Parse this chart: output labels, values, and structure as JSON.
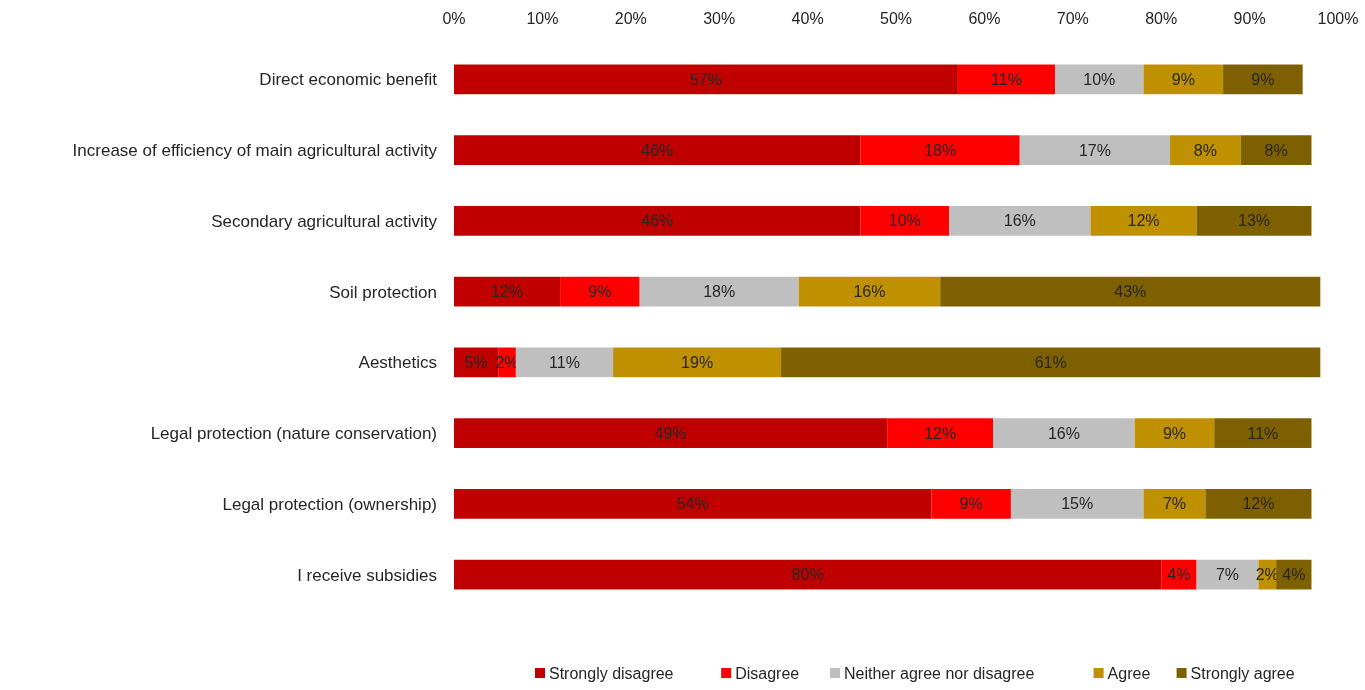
{
  "chart_data": {
    "type": "bar",
    "orientation": "horizontal",
    "stacked": true,
    "legend": "bottom",
    "grid": false,
    "categories": [
      "Direct economic benefit",
      "Increase of efficiency of main agricultural activity",
      "Secondary agricultural activity",
      "Soil protection",
      "Aesthetics",
      "Legal protection (nature conservation)",
      "Legal protection (ownership)",
      "I receive subsidies"
    ],
    "xlim": [
      0,
      100
    ],
    "xticks": [
      {
        "value": 0,
        "label": "0%"
      },
      {
        "value": 10,
        "label": "10%"
      },
      {
        "value": 20,
        "label": "20%"
      },
      {
        "value": 30,
        "label": "30%"
      },
      {
        "value": 40,
        "label": "40%"
      },
      {
        "value": 50,
        "label": "50%"
      },
      {
        "value": 60,
        "label": "60%"
      },
      {
        "value": 70,
        "label": "70%"
      },
      {
        "value": 80,
        "label": "80%"
      },
      {
        "value": 90,
        "label": "90%"
      },
      {
        "value": 100,
        "label": "100%"
      }
    ],
    "series": [
      {
        "name": "Strongly disagree",
        "color": "#c00000",
        "values": [
          57,
          46,
          46,
          12,
          5,
          49,
          54,
          80
        ],
        "value_labels": [
          "57%",
          "46%",
          "46%",
          "12%",
          "5%",
          "49%",
          "54%",
          "80%"
        ]
      },
      {
        "name": "Disagree",
        "color": "#ff0000",
        "values": [
          11,
          18,
          10,
          9,
          2,
          12,
          9,
          4
        ],
        "value_labels": [
          "11%",
          "18%",
          "10%",
          "9%",
          "2%",
          "12%",
          "9%",
          "4%"
        ]
      },
      {
        "name": "Neither agree nor disagree",
        "color": "#bfbfbf",
        "values": [
          10,
          17,
          16,
          18,
          11,
          16,
          15,
          7
        ],
        "value_labels": [
          "10%",
          "17%",
          "16%",
          "18%",
          "11%",
          "16%",
          "15%",
          "7%"
        ]
      },
      {
        "name": "Agree",
        "color": "#bf9000",
        "values": [
          9,
          8,
          12,
          16,
          19,
          9,
          7,
          2
        ],
        "value_labels": [
          "9%",
          "8%",
          "12%",
          "16%",
          "19%",
          "9%",
          "7%",
          "2%"
        ]
      },
      {
        "name": "Strongly agree",
        "color": "#7f6000",
        "values": [
          9,
          8,
          13,
          43,
          61,
          11,
          12,
          4
        ],
        "value_labels": [
          "9%",
          "8%",
          "13%",
          "43%",
          "61%",
          "11%",
          "12%",
          "4%"
        ]
      }
    ]
  }
}
